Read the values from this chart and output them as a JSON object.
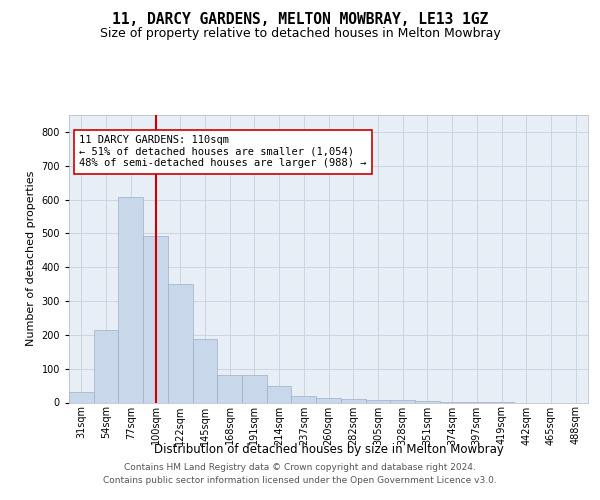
{
  "title": "11, DARCY GARDENS, MELTON MOWBRAY, LE13 1GZ",
  "subtitle": "Size of property relative to detached houses in Melton Mowbray",
  "xlabel": "Distribution of detached houses by size in Melton Mowbray",
  "ylabel": "Number of detached properties",
  "categories": [
    "31sqm",
    "54sqm",
    "77sqm",
    "100sqm",
    "122sqm",
    "145sqm",
    "168sqm",
    "191sqm",
    "214sqm",
    "237sqm",
    "260sqm",
    "282sqm",
    "305sqm",
    "328sqm",
    "351sqm",
    "374sqm",
    "397sqm",
    "419sqm",
    "442sqm",
    "465sqm",
    "488sqm"
  ],
  "values": [
    30,
    215,
    608,
    493,
    350,
    188,
    82,
    82,
    50,
    18,
    12,
    10,
    7,
    7,
    5,
    2,
    1,
    1,
    0,
    0,
    0
  ],
  "bar_color": "#c8d8ea",
  "bar_edge_color": "#9ab0c8",
  "vline_color": "#cc0000",
  "annotation_text": "11 DARCY GARDENS: 110sqm\n← 51% of detached houses are smaller (1,054)\n48% of semi-detached houses are larger (988) →",
  "annotation_box_color": "#ffffff",
  "annotation_box_edge_color": "#cc0000",
  "ylim": [
    0,
    850
  ],
  "yticks": [
    0,
    100,
    200,
    300,
    400,
    500,
    600,
    700,
    800
  ],
  "grid_color": "#ccd4e0",
  "plot_bg_color": "#e8eef6",
  "footer_line1": "Contains HM Land Registry data © Crown copyright and database right 2024.",
  "footer_line2": "Contains public sector information licensed under the Open Government Licence v3.0.",
  "title_fontsize": 10.5,
  "subtitle_fontsize": 9,
  "xlabel_fontsize": 8.5,
  "ylabel_fontsize": 8,
  "tick_fontsize": 7,
  "footer_fontsize": 6.5,
  "ann_fontsize": 7.5
}
